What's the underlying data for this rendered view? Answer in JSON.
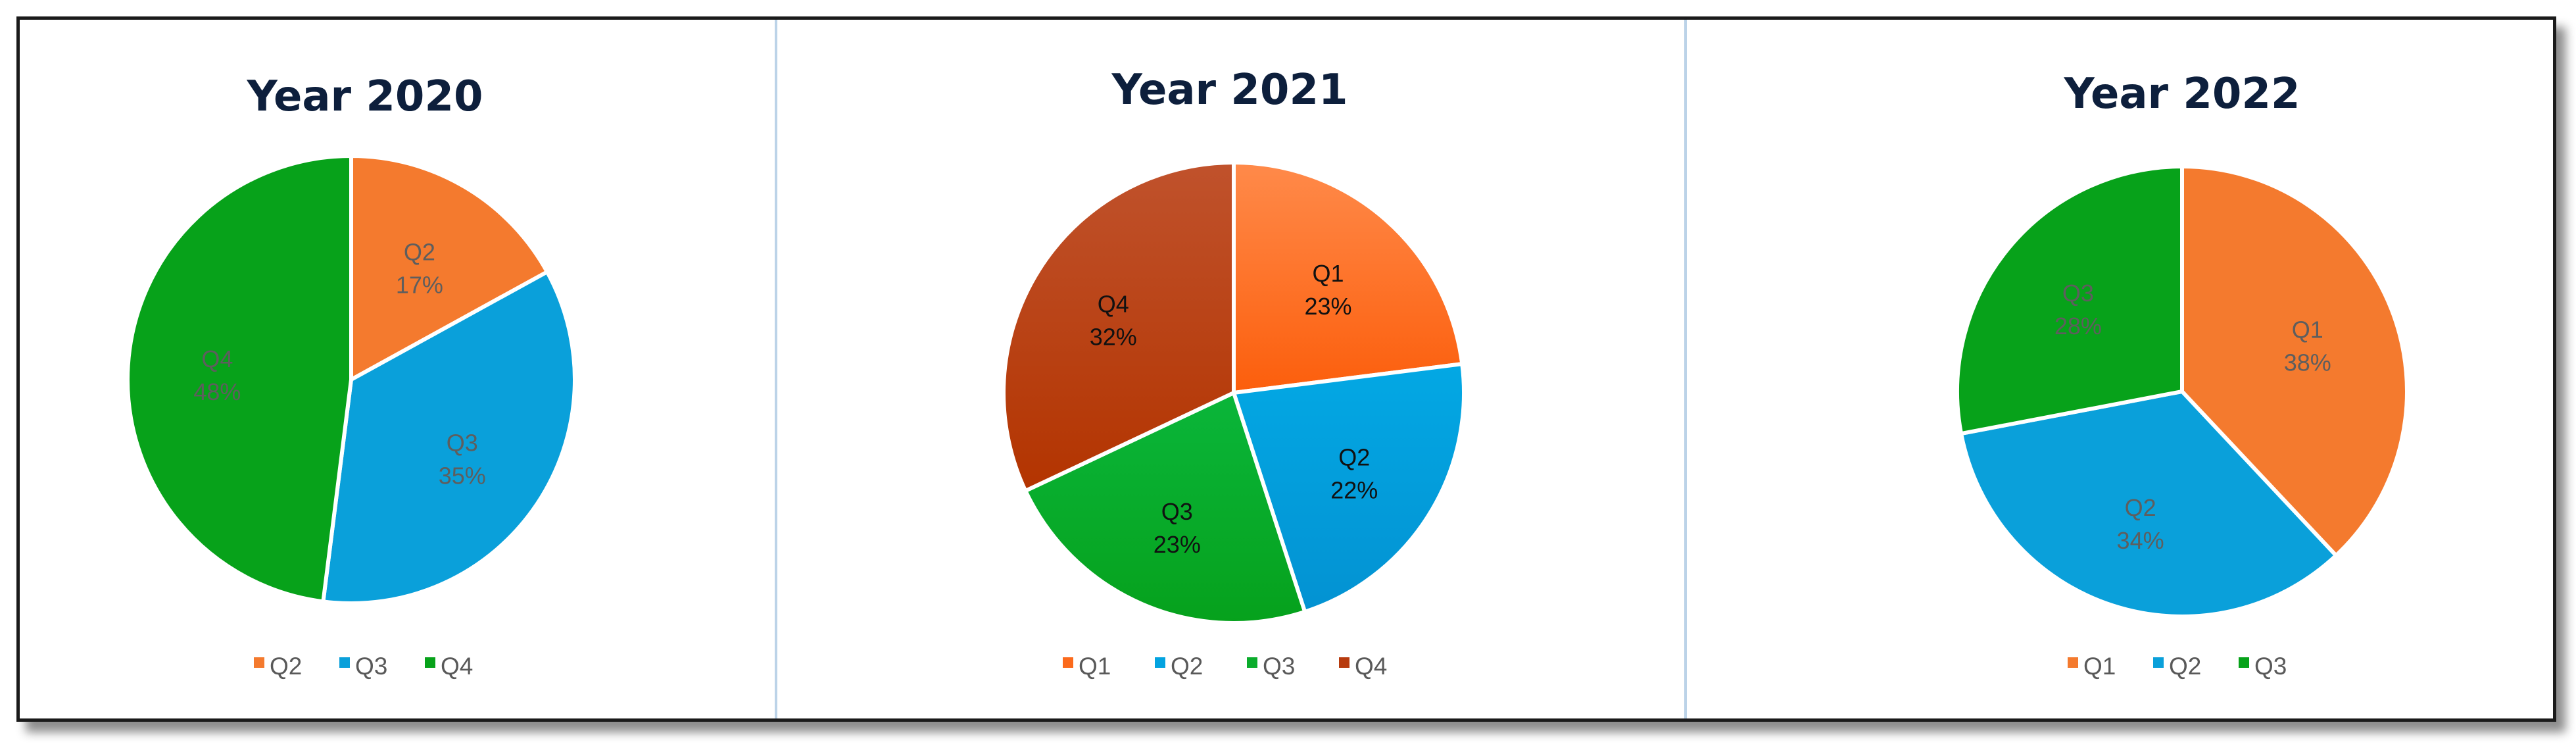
{
  "chart_data": [
    {
      "type": "pie",
      "title": "Year 2020",
      "categories": [
        "Q2",
        "Q3",
        "Q4"
      ],
      "values": [
        17,
        35,
        48
      ],
      "value_format": "percent",
      "colors": [
        "#f47a2e",
        "#0aa0da",
        "#07a21a"
      ],
      "legend_placement": "bottom",
      "legend": [
        "Q2",
        "Q3",
        "Q4"
      ],
      "labels": [
        {
          "name": "Q2",
          "value": "17%"
        },
        {
          "name": "Q3",
          "value": "35%"
        },
        {
          "name": "Q4",
          "value": "48%"
        }
      ]
    },
    {
      "type": "pie",
      "title": "Year 2021",
      "categories": [
        "Q1",
        "Q2",
        "Q3",
        "Q4"
      ],
      "values": [
        23,
        22,
        23,
        32
      ],
      "value_format": "percent",
      "colors": [
        "#fb6a1c",
        "#03a3e0",
        "#0aac2c",
        "#b73b0e"
      ],
      "legend_placement": "bottom",
      "legend": [
        "Q1",
        "Q2",
        "Q3",
        "Q4"
      ],
      "labels": [
        {
          "name": "Q1",
          "value": "23%"
        },
        {
          "name": "Q2",
          "value": "22%"
        },
        {
          "name": "Q3",
          "value": "23%"
        },
        {
          "name": "Q4",
          "value": "32%"
        }
      ]
    },
    {
      "type": "pie",
      "title": "Year 2022",
      "categories": [
        "Q1",
        "Q2",
        "Q3"
      ],
      "values": [
        38,
        34,
        28
      ],
      "value_format": "percent",
      "colors": [
        "#f47a2e",
        "#0aa0da",
        "#07a21a"
      ],
      "legend_placement": "bottom",
      "legend": [
        "Q1",
        "Q2",
        "Q3"
      ],
      "labels": [
        {
          "name": "Q1",
          "value": "38%"
        },
        {
          "name": "Q2",
          "value": "34%"
        },
        {
          "name": "Q3",
          "value": "28%"
        }
      ]
    }
  ]
}
